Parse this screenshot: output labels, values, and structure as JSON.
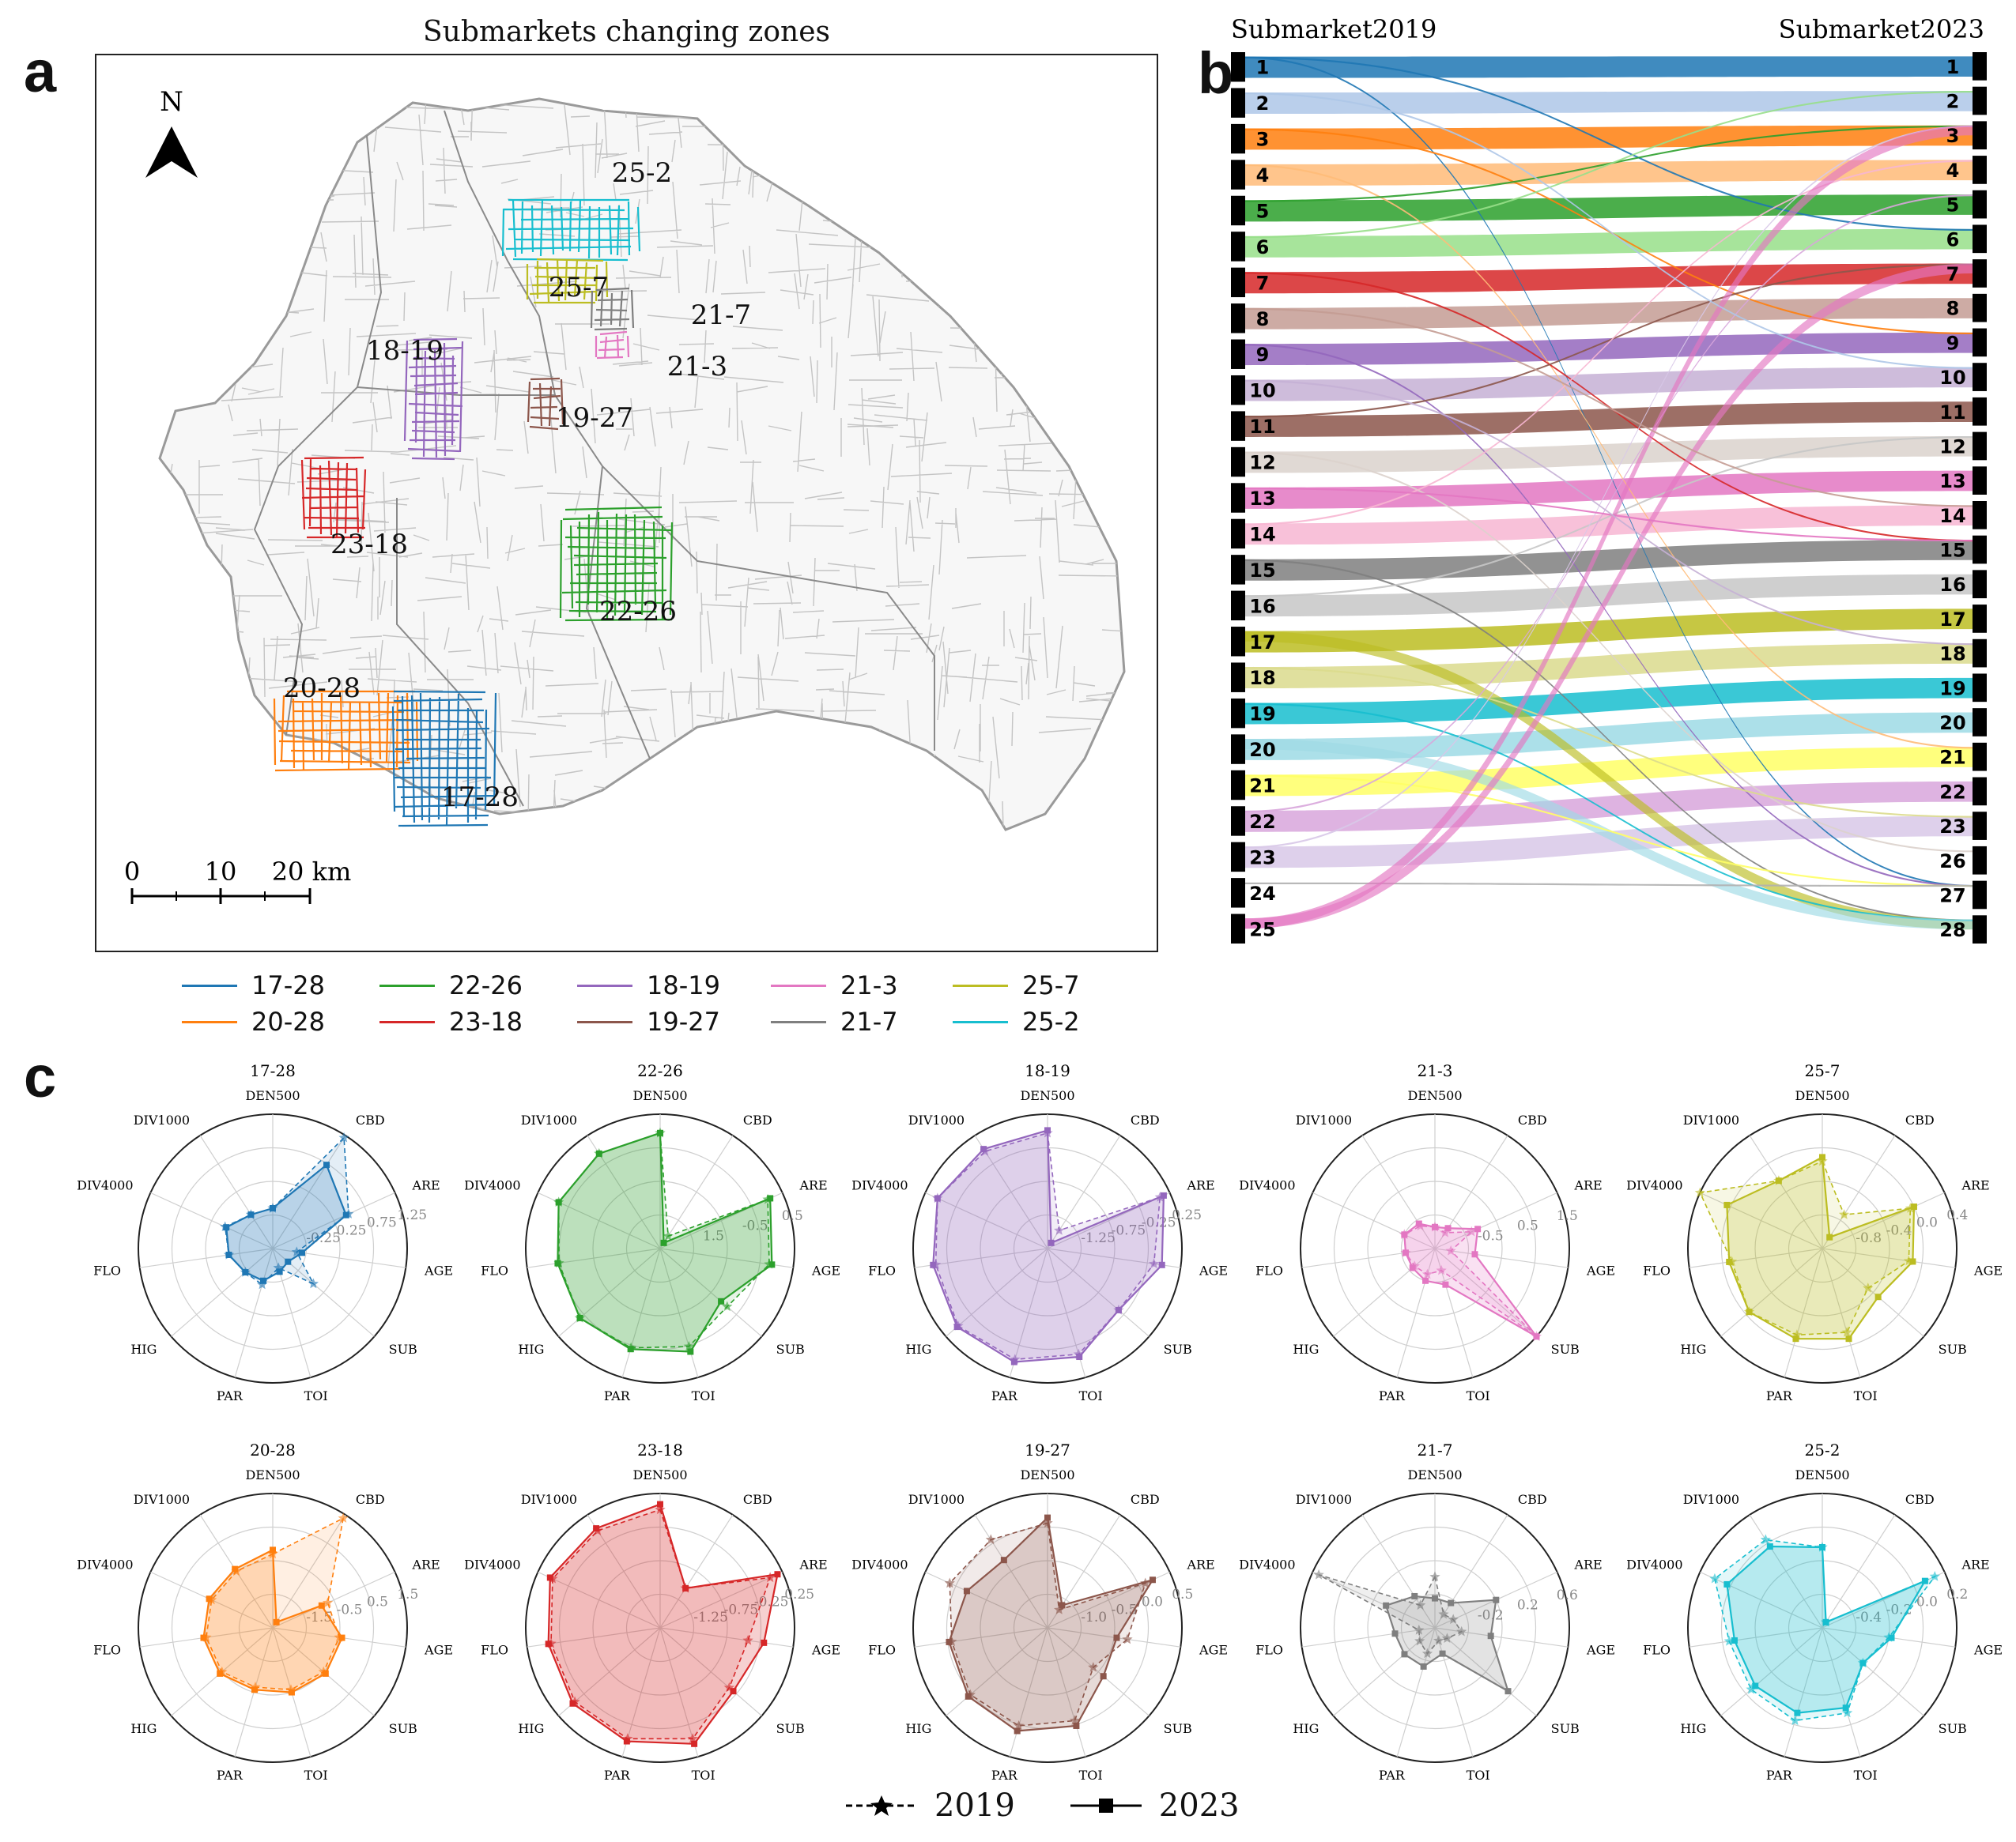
{
  "panels": {
    "a": "a",
    "b": "b",
    "c": "c"
  },
  "map": {
    "title": "Submarkets changing zones",
    "north_label": "N",
    "scale_labels": [
      "0",
      "10",
      "20 km"
    ],
    "zones": [
      {
        "label": "25-2",
        "color": "#17becf"
      },
      {
        "label": "25-7",
        "color": "#bcbd22"
      },
      {
        "label": "21-7",
        "color": "#7f7f7f"
      },
      {
        "label": "21-3",
        "color": "#e377c2"
      },
      {
        "label": "18-19",
        "color": "#9467bd"
      },
      {
        "label": "19-27",
        "color": "#8c564b"
      },
      {
        "label": "23-18",
        "color": "#d62728"
      },
      {
        "label": "22-26",
        "color": "#2ca02c"
      },
      {
        "label": "20-28",
        "color": "#ff7f0e"
      },
      {
        "label": "17-28",
        "color": "#1f77b4"
      }
    ]
  },
  "legend": {
    "items": [
      {
        "label": "17-28",
        "color": "#1f77b4"
      },
      {
        "label": "22-26",
        "color": "#2ca02c"
      },
      {
        "label": "18-19",
        "color": "#9467bd"
      },
      {
        "label": "21-3",
        "color": "#e377c2"
      },
      {
        "label": "25-7",
        "color": "#bcbd22"
      },
      {
        "label": "20-28",
        "color": "#ff7f0e"
      },
      {
        "label": "23-18",
        "color": "#d62728"
      },
      {
        "label": "19-27",
        "color": "#8c564b"
      },
      {
        "label": "21-7",
        "color": "#7f7f7f"
      },
      {
        "label": "25-2",
        "color": "#17becf"
      }
    ]
  },
  "sankey": {
    "left_title": "Submarket2019",
    "right_title": "Submarket2023",
    "left_nodes": [
      "1",
      "2",
      "3",
      "4",
      "5",
      "6",
      "7",
      "8",
      "9",
      "10",
      "11",
      "12",
      "13",
      "14",
      "15",
      "16",
      "17",
      "18",
      "19",
      "20",
      "21",
      "22",
      "23",
      "24",
      "25"
    ],
    "right_nodes": [
      "1",
      "2",
      "3",
      "4",
      "5",
      "6",
      "7",
      "8",
      "9",
      "10",
      "11",
      "12",
      "13",
      "14",
      "15",
      "16",
      "17",
      "18",
      "19",
      "20",
      "21",
      "22",
      "23",
      "26",
      "27",
      "28"
    ],
    "node_colors": [
      "#1f77b4",
      "#aec7e8",
      "#ff7f0e",
      "#ffbb78",
      "#2ca02c",
      "#98df8a",
      "#d62728",
      "#c49c94",
      "#9467bd",
      "#c5b0d5",
      "#8c564b",
      "#dbd2cc",
      "#e377c2",
      "#f7b6d2",
      "#7f7f7f",
      "#c7c7c7",
      "#bcbd22",
      "#dbdb8d",
      "#17becf",
      "#9edae5",
      "#ffff66",
      "#d8a6dc",
      "#d8c8e8",
      "#b0b0b0",
      "#e377c2"
    ]
  },
  "chart_data": {
    "type": "radar",
    "axes": [
      "DEN500",
      "CBD",
      "ARE",
      "AGE",
      "SUB",
      "TOI",
      "PAR",
      "HIG",
      "FLO",
      "DIV4000",
      "DIV1000"
    ],
    "series_names": [
      "2019",
      "2023"
    ],
    "charts": [
      {
        "title": "17-28",
        "color": "#1f77b4",
        "ticks": [
          "-0.25",
          "0.25",
          "0.75",
          "1.25"
        ],
        "v2019": [
          0.3,
          0.98,
          0.62,
          0.18,
          0.4,
          0.15,
          0.28,
          0.27,
          0.33,
          0.39,
          0.3
        ],
        "v2023": [
          0.3,
          0.74,
          0.6,
          0.22,
          0.15,
          0.18,
          0.25,
          0.27,
          0.33,
          0.38,
          0.3
        ]
      },
      {
        "title": "22-26",
        "color": "#2ca02c",
        "ticks": [
          "1.5",
          "-0.5",
          "0.5"
        ],
        "v2019": [
          0.86,
          0.11,
          0.88,
          0.82,
          0.66,
          0.76,
          0.77,
          0.79,
          0.76,
          0.83,
          0.84
        ],
        "v2023": [
          0.86,
          0.05,
          0.9,
          0.84,
          0.6,
          0.8,
          0.78,
          0.79,
          0.77,
          0.83,
          0.84
        ]
      },
      {
        "title": "18-19",
        "color": "#9467bd",
        "ticks": [
          "-1.25",
          "-0.75",
          "-0.25",
          "0.25"
        ],
        "v2019": [
          0.86,
          0.16,
          0.92,
          0.8,
          0.7,
          0.82,
          0.86,
          0.88,
          0.84,
          0.9,
          0.86
        ],
        "v2023": [
          0.88,
          0.05,
          0.95,
          0.86,
          0.7,
          0.84,
          0.88,
          0.89,
          0.86,
          0.9,
          0.88
        ]
      },
      {
        "title": "21-3",
        "color": "#e377c2",
        "ticks": [
          "-0.5",
          "0.5",
          "1.5"
        ],
        "v2019": [
          0.16,
          0.14,
          0.3,
          0.12,
          1.0,
          0.17,
          0.2,
          0.2,
          0.22,
          0.25,
          0.2
        ],
        "v2023": [
          0.16,
          0.18,
          0.35,
          0.3,
          1.0,
          0.28,
          0.25,
          0.22,
          0.22,
          0.25,
          0.22
        ]
      },
      {
        "title": "25-7",
        "color": "#bcbd22",
        "ticks": [
          "-0.8",
          "-0.4",
          "0.0",
          "0.4"
        ],
        "v2019": [
          0.65,
          0.3,
          0.72,
          0.65,
          0.45,
          0.65,
          0.67,
          0.72,
          0.68,
          1.0,
          0.6
        ],
        "v2023": [
          0.68,
          0.1,
          0.75,
          0.68,
          0.55,
          0.7,
          0.7,
          0.72,
          0.7,
          0.78,
          0.6
        ]
      },
      {
        "title": "20-28",
        "color": "#ff7f0e",
        "ticks": [
          "-1.5",
          "-0.5",
          "0.5",
          "1.5"
        ],
        "v2019": [
          0.55,
          0.97,
          0.45,
          0.5,
          0.5,
          0.48,
          0.46,
          0.5,
          0.5,
          0.5,
          0.5
        ],
        "v2023": [
          0.58,
          0.05,
          0.4,
          0.52,
          0.52,
          0.5,
          0.48,
          0.52,
          0.52,
          0.52,
          0.52
        ]
      },
      {
        "title": "23-18",
        "color": "#d62728",
        "ticks": [
          "-1.25",
          "-0.75",
          "-0.25",
          "0.25"
        ],
        "v2019": [
          0.88,
          0.35,
          0.9,
          0.66,
          0.68,
          0.86,
          0.86,
          0.84,
          0.82,
          0.88,
          0.86
        ],
        "v2023": [
          0.92,
          0.35,
          0.96,
          0.78,
          0.72,
          0.9,
          0.88,
          0.86,
          0.84,
          0.9,
          0.88
        ]
      },
      {
        "title": "19-27",
        "color": "#8c564b",
        "ticks": [
          "-1.0",
          "-0.5",
          "0.0",
          "0.5"
        ],
        "v2019": [
          0.78,
          0.16,
          0.8,
          0.6,
          0.45,
          0.72,
          0.76,
          0.76,
          0.72,
          0.8,
          0.78
        ],
        "v2023": [
          0.82,
          0.2,
          0.86,
          0.52,
          0.55,
          0.76,
          0.8,
          0.78,
          0.74,
          0.66,
          0.6
        ]
      },
      {
        "title": "21-7",
        "color": "#7f7f7f",
        "ticks": [
          "-0.2",
          "0.2",
          "0.6"
        ],
        "v2019": [
          0.38,
          0.12,
          0.15,
          0.2,
          0.12,
          0.1,
          0.2,
          0.15,
          0.12,
          0.95,
          0.2
        ],
        "v2023": [
          0.22,
          0.22,
          0.5,
          0.42,
          0.72,
          0.2,
          0.3,
          0.3,
          0.3,
          0.4,
          0.28
        ]
      },
      {
        "title": "25-2",
        "color": "#17becf",
        "ticks": [
          "-0.4",
          "-0.2",
          "0.0",
          "0.2"
        ],
        "v2019": [
          0.6,
          0.05,
          0.92,
          0.5,
          0.4,
          0.66,
          0.72,
          0.7,
          0.7,
          0.88,
          0.78
        ],
        "v2023": [
          0.6,
          0.05,
          0.84,
          0.52,
          0.4,
          0.62,
          0.66,
          0.66,
          0.66,
          0.78,
          0.72
        ]
      }
    ]
  },
  "radar_legend": {
    "label_2019": "2019",
    "label_2023": "2023"
  }
}
